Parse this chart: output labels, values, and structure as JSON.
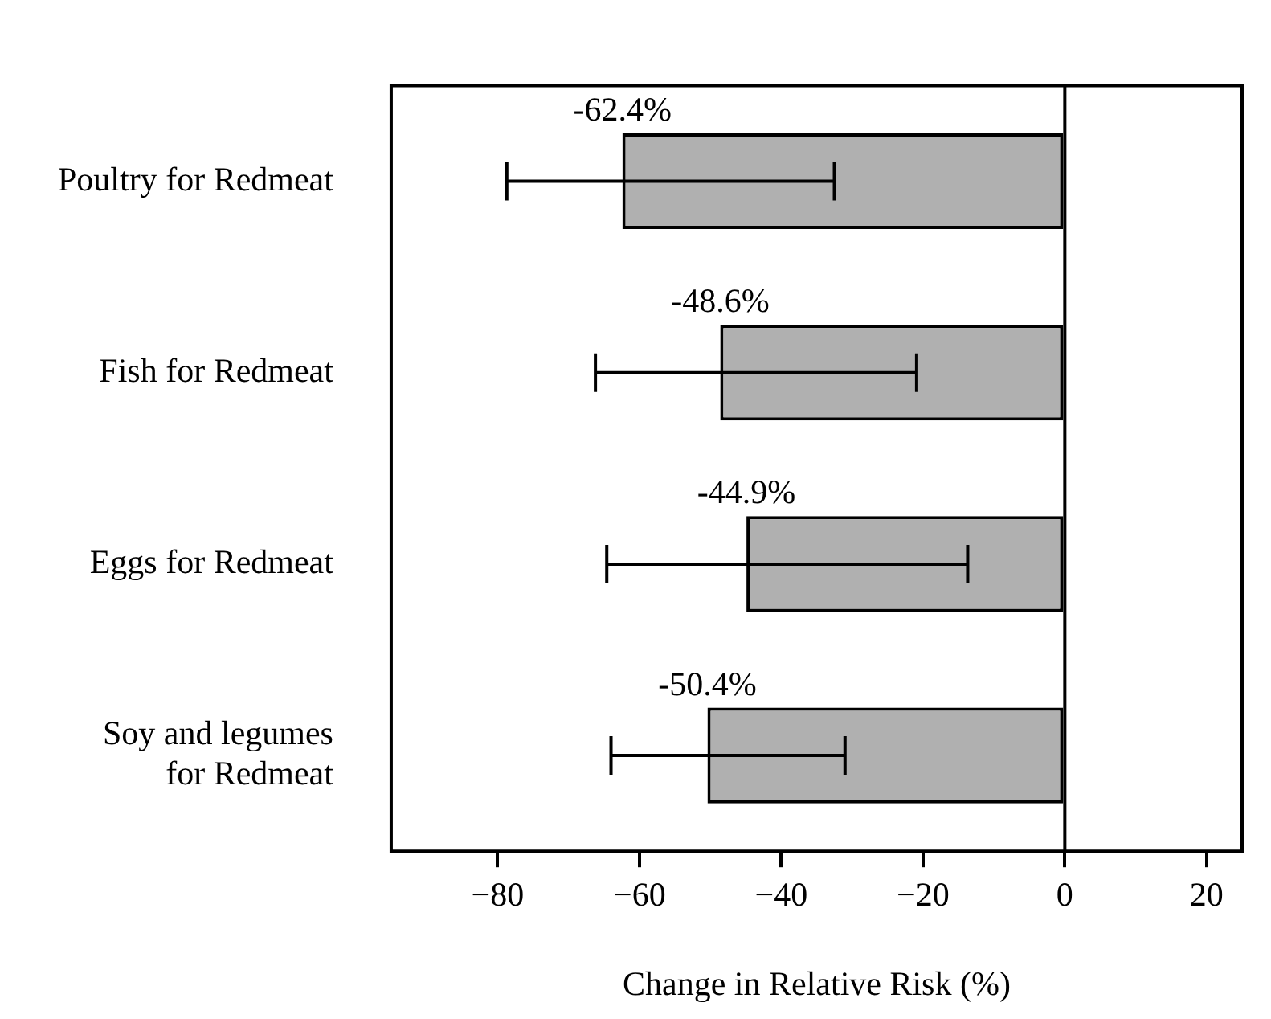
{
  "chart_data": {
    "type": "bar",
    "orientation": "horizontal",
    "xlabel": "Change in Relative Risk (%)",
    "categories": [
      "Poultry for Redmeat",
      "Fish for Redmeat",
      "Eggs for Redmeat",
      "Soy and legumes\nfor Redmeat"
    ],
    "values": [
      -62.4,
      -48.6,
      -44.9,
      -50.4
    ],
    "value_labels": [
      "-62.4%",
      "-48.6%",
      "-44.9%",
      "-50.4%"
    ],
    "errors": [
      [
        -78.7,
        -32.5
      ],
      [
        -66.2,
        -20.9
      ],
      [
        -64.6,
        -13.7
      ],
      [
        -64.0,
        -31.0
      ]
    ],
    "color": "#b0b0b0",
    "xlim": [
      -95,
      25
    ],
    "xticks": [
      {
        "value": -80,
        "label": "−80"
      },
      {
        "value": -60,
        "label": "−60"
      },
      {
        "value": -40,
        "label": "−40"
      },
      {
        "value": -20,
        "label": "−20"
      },
      0,
      20
    ],
    "ref_lines": [
      {
        "axis": "x",
        "value": 0,
        "color": "#000000"
      }
    ],
    "grid": false,
    "legend": false
  }
}
